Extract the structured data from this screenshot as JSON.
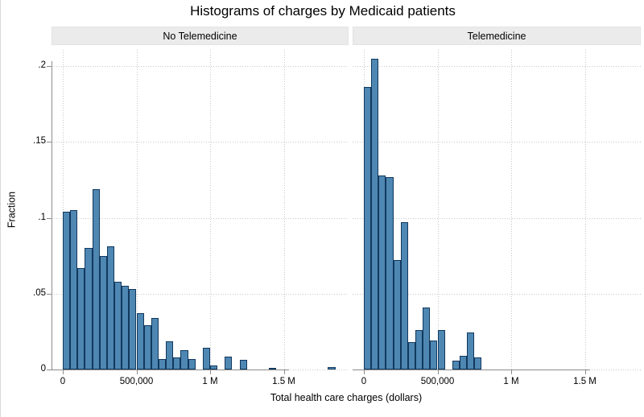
{
  "title": "Histograms of charges by Medicaid patients",
  "colors": {
    "bar_fill": "#4e87b2",
    "bar_border": "#12385e",
    "grid_dots": "#c6c6c6",
    "axis_line": "#8c8c8c",
    "panel_header_bg": "#ebebeb",
    "text": "#000000"
  },
  "chart_data": {
    "type": "bar",
    "subtype": "histogram-by-panels",
    "title": "Histograms of charges by Medicaid patients",
    "xlabel": "Total health care charges (dollars)",
    "ylabel": "Fraction",
    "grid": "dotted",
    "legend_position": "none",
    "ylim": [
      0,
      0.21
    ],
    "xlim_dollars": [
      0,
      1900000
    ],
    "y_tick_values": [
      0,
      0.05,
      0.1,
      0.15,
      0.2
    ],
    "y_tick_labels": [
      "0",
      ".05",
      ".1",
      ".15",
      ".2"
    ],
    "x_tick_values": [
      0,
      500000,
      1000000,
      1500000
    ],
    "x_tick_labels": [
      "0",
      "500,000",
      "1 M",
      "1.5 M"
    ],
    "bin_width_dollars": 50000,
    "note": "fractions arrays give bar heights for consecutive 50k bins starting at $0",
    "series": [
      {
        "name": "No Telemedicine",
        "fractions": [
          0.104,
          0.105,
          0.067,
          0.08,
          0.119,
          0.075,
          0.081,
          0.058,
          0.055,
          0.053,
          0.037,
          0.029,
          0.034,
          0.007,
          0.0185,
          0.008,
          0.0125,
          0.0068,
          0,
          0.0145,
          0.0026,
          0,
          0.0083,
          0,
          0.0062,
          0,
          0,
          0,
          0.0008,
          0,
          0,
          0,
          0,
          0,
          0,
          0,
          0.0018
        ]
      },
      {
        "name": "Telemedicine",
        "fractions": [
          0.186,
          0.205,
          0.128,
          0.127,
          0.072,
          0.097,
          0.018,
          0.026,
          0.041,
          0.019,
          0.026,
          0,
          0.006,
          0.009,
          0.0245,
          0.008
        ]
      }
    ]
  }
}
